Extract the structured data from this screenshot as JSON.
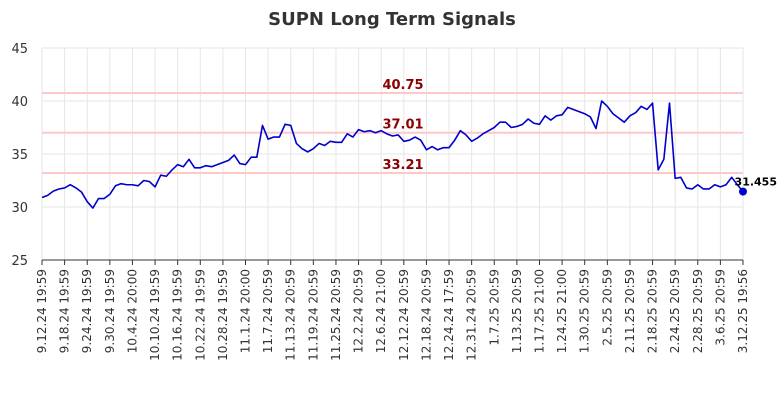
{
  "chart_data": {
    "type": "line",
    "title": "SUPN Long Term Signals",
    "xlabel": "",
    "ylabel": "",
    "ylim": [
      25,
      45
    ],
    "yticks": [
      25,
      30,
      35,
      40,
      45
    ],
    "grid": true,
    "x_tick_labels": [
      "9.12.24 19:59",
      "9.18.24 19:59",
      "9.24.24 19:59",
      "9.30.24 19:59",
      "10.4.24 20:00",
      "10.10.24 19:59",
      "10.16.24 19:59",
      "10.22.24 19:59",
      "10.28.24 19:59",
      "11.1.24 20:00",
      "11.7.24 20:59",
      "11.13.24 20:59",
      "11.19.24 20:59",
      "11.25.24 20:59",
      "12.2.24 20:59",
      "12.6.24 21:00",
      "12.12.24 20:59",
      "12.18.24 20:59",
      "12.24.24 17:59",
      "12.31.24 20:59",
      "1.7.25 20:59",
      "1.13.25 20:59",
      "1.17.25 21:00",
      "1.24.25 21:00",
      "1.30.25 20:59",
      "2.5.25 20:59",
      "2.11.25 20:59",
      "2.18.25 20:59",
      "2.24.25 20:59",
      "2.28.25 20:59",
      "3.6.25 20:59",
      "3.12.25 19:56"
    ],
    "signals": [
      {
        "value": 40.75,
        "label": "40.75"
      },
      {
        "value": 37.01,
        "label": "37.01"
      },
      {
        "value": 33.21,
        "label": "33.21"
      }
    ],
    "last_value_label": "31.455",
    "series": [
      {
        "color": "#0000cc",
        "values": [
          30.9,
          31.1,
          31.5,
          31.7,
          31.8,
          32.1,
          31.8,
          31.4,
          30.5,
          29.9,
          30.8,
          30.8,
          31.2,
          32.0,
          32.2,
          32.1,
          32.1,
          32.0,
          32.5,
          32.4,
          31.9,
          33.0,
          32.9,
          33.5,
          34.0,
          33.8,
          34.5,
          33.7,
          33.7,
          33.9,
          33.8,
          34.0,
          34.2,
          34.4,
          34.9,
          34.1,
          34.0,
          34.7,
          34.7,
          37.7,
          36.4,
          36.6,
          36.6,
          37.8,
          37.7,
          36.0,
          35.5,
          35.2,
          35.5,
          36.0,
          35.8,
          36.2,
          36.1,
          36.1,
          36.9,
          36.6,
          37.3,
          37.1,
          37.2,
          37.0,
          37.2,
          36.9,
          36.7,
          36.8,
          36.2,
          36.3,
          36.6,
          36.3,
          35.4,
          35.7,
          35.4,
          35.6,
          35.6,
          36.3,
          37.2,
          36.8,
          36.2,
          36.5,
          36.9,
          37.2,
          37.5,
          38.0,
          38.0,
          37.5,
          37.6,
          37.8,
          38.3,
          37.9,
          37.8,
          38.6,
          38.2,
          38.6,
          38.7,
          39.4,
          39.2,
          39.0,
          38.8,
          38.5,
          37.4,
          40.0,
          39.5,
          38.8,
          38.4,
          38.0,
          38.6,
          38.9,
          39.5,
          39.2,
          39.8,
          33.5,
          34.5,
          39.8,
          32.7,
          32.8,
          31.8,
          31.7,
          32.1,
          31.7,
          31.7,
          32.1,
          31.9,
          32.1,
          32.8,
          32.1,
          31.455
        ]
      }
    ]
  }
}
